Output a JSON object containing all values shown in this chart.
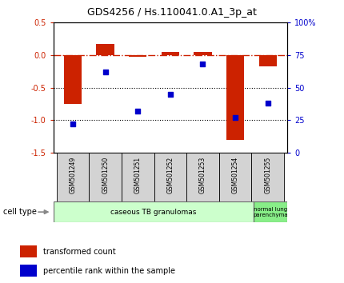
{
  "title": "GDS4256 / Hs.110041.0.A1_3p_at",
  "samples": [
    "GSM501249",
    "GSM501250",
    "GSM501251",
    "GSM501252",
    "GSM501253",
    "GSM501254",
    "GSM501255"
  ],
  "transformed_count": [
    -0.75,
    0.17,
    -0.02,
    0.05,
    0.05,
    -1.3,
    -0.17
  ],
  "percentile_rank": [
    22,
    62,
    32,
    45,
    68,
    27,
    38
  ],
  "ylim_left": [
    -1.5,
    0.5
  ],
  "ylim_right": [
    0,
    100
  ],
  "yticks_left": [
    -1.5,
    -1.0,
    -0.5,
    0.0,
    0.5
  ],
  "yticks_right": [
    0,
    25,
    50,
    75,
    100
  ],
  "ytick_labels_right": [
    "0",
    "25",
    "50",
    "75",
    "100%"
  ],
  "bar_color": "#cc2200",
  "dot_color": "#0000cc",
  "dotted_lines": [
    -0.5,
    -1.0
  ],
  "cell_type_groups": [
    {
      "label": "caseous TB granulomas",
      "start": 0,
      "end": 6,
      "color": "#ccffcc"
    },
    {
      "label": "normal lung\nparenchyma",
      "start": 6,
      "end": 7,
      "color": "#88ee88"
    }
  ],
  "cell_type_label": "cell type",
  "legend_items": [
    {
      "color": "#cc2200",
      "label": "transformed count"
    },
    {
      "color": "#0000cc",
      "label": "percentile rank within the sample"
    }
  ],
  "bar_width": 0.55,
  "background_color": "#ffffff",
  "label_bg_color": "#d3d3d3",
  "fig_width": 4.3,
  "fig_height": 3.54,
  "dpi": 100
}
